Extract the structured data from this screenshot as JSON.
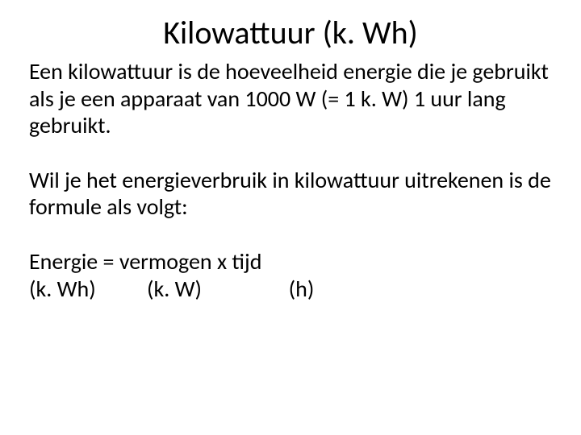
{
  "slide": {
    "title": "Kilowattuur (k. Wh)",
    "para1": "Een kilowattuur is de hoeveelheid energie die je gebruikt als je een apparaat van 1000 W (= 1 k. W) 1 uur lang gebruikt.",
    "para2": "Wil je het energieverbruik in kilowattuur uitrekenen is de formule als volgt:",
    "formula": "Energie = vermogen x tijd",
    "units": "(k. Wh)          (k. W)                 (h)"
  },
  "style": {
    "background_color": "#ffffff",
    "text_color": "#000000",
    "title_fontsize": 40,
    "body_fontsize": 28,
    "font_family": "Calibri"
  }
}
